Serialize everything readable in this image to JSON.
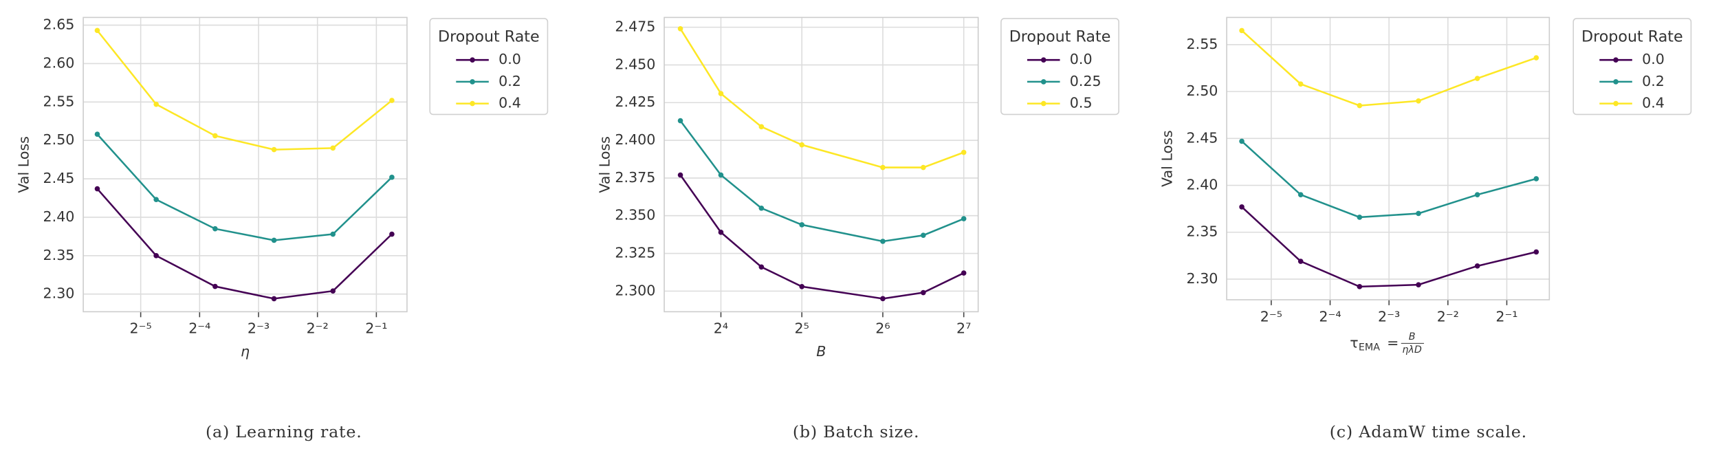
{
  "chart_data": [
    {
      "type": "line",
      "caption": "(a) Learning rate.",
      "xlabel": "η",
      "ylabel": "Val Loss",
      "legend_title": "Dropout Rate",
      "legend_position": "outside upper right",
      "grid": true,
      "xscale": "log2",
      "x": [
        0.01875,
        0.0375,
        0.075,
        0.15,
        0.3,
        0.6
      ],
      "series": [
        {
          "name": "0.0",
          "color": "#440154",
          "values": [
            2.437,
            2.35,
            2.31,
            2.294,
            2.304,
            2.378
          ]
        },
        {
          "name": "0.2",
          "color": "#21918c",
          "values": [
            2.508,
            2.423,
            2.385,
            2.37,
            2.378,
            2.452
          ]
        },
        {
          "name": "0.4",
          "color": "#fde725",
          "values": [
            2.643,
            2.547,
            2.506,
            2.488,
            2.49,
            2.552
          ]
        }
      ],
      "xlim": [
        0.0159,
        0.717
      ],
      "ylim": [
        2.277,
        2.66
      ],
      "xticks": [
        {
          "value": 0.03125,
          "label": "2⁻⁵"
        },
        {
          "value": 0.0625,
          "label": "2⁻⁴"
        },
        {
          "value": 0.125,
          "label": "2⁻³"
        },
        {
          "value": 0.25,
          "label": "2⁻²"
        },
        {
          "value": 0.5,
          "label": "2⁻¹"
        }
      ],
      "yticks": [
        {
          "value": 2.3,
          "label": "2.30"
        },
        2.35,
        {
          "value": 2.4,
          "label": "2.40"
        },
        2.45,
        {
          "value": 2.5,
          "label": "2.50"
        },
        2.55,
        {
          "value": 2.6,
          "label": "2.60"
        },
        2.65
      ]
    },
    {
      "type": "line",
      "caption": "(b) Batch size.",
      "xlabel": "B",
      "ylabel": "Val Loss",
      "legend_title": "Dropout Rate",
      "legend_position": "outside upper right",
      "grid": true,
      "xscale": "log2",
      "x": [
        11.31,
        16,
        22.63,
        32,
        64,
        90.51,
        128
      ],
      "series": [
        {
          "name": "0.0",
          "color": "#440154",
          "values": [
            2.377,
            2.339,
            2.316,
            2.303,
            2.295,
            2.299,
            2.312
          ]
        },
        {
          "name": "0.25",
          "color": "#21918c",
          "values": [
            2.413,
            2.377,
            2.355,
            2.344,
            2.333,
            2.337,
            2.348
          ]
        },
        {
          "name": "0.5",
          "color": "#fde725",
          "values": [
            2.474,
            2.431,
            2.409,
            2.397,
            2.382,
            2.382,
            2.392
          ]
        }
      ],
      "xlim": [
        9.85,
        144.8
      ],
      "ylim": [
        2.2863,
        2.4815
      ],
      "xticks": [
        {
          "value": 16,
          "label": "2⁴"
        },
        {
          "value": 32,
          "label": "2⁵"
        },
        {
          "value": 64,
          "label": "2⁶"
        },
        {
          "value": 128,
          "label": "2⁷"
        }
      ],
      "yticks": [
        {
          "value": 2.3,
          "label": "2.300"
        },
        2.325,
        {
          "value": 2.35,
          "label": "2.350"
        },
        2.375,
        {
          "value": 2.4,
          "label": "2.400"
        },
        2.425,
        {
          "value": 2.45,
          "label": "2.450"
        },
        2.475
      ]
    },
    {
      "type": "line",
      "caption": "(c) AdamW time scale.",
      "xlabel": {
        "symbol": "τ",
        "subscript": "EMA",
        "equals": "=",
        "numerator": "B",
        "denominator": "ηλD"
      },
      "ylabel": "Val Loss",
      "legend_title": "Dropout Rate",
      "legend_position": "outside upper right",
      "grid": true,
      "xscale": "log2",
      "x": [
        0.0221,
        0.0442,
        0.0884,
        0.1768,
        0.3536,
        0.7071
      ],
      "series": [
        {
          "name": "0.0",
          "color": "#440154",
          "values": [
            2.377,
            2.319,
            2.292,
            2.294,
            2.314,
            2.329
          ]
        },
        {
          "name": "0.2",
          "color": "#21918c",
          "values": [
            2.447,
            2.39,
            2.366,
            2.37,
            2.39,
            2.407
          ]
        },
        {
          "name": "0.4",
          "color": "#fde725",
          "values": [
            2.565,
            2.508,
            2.485,
            2.49,
            2.514,
            2.536
          ]
        }
      ],
      "xlim": [
        0.0185,
        0.825
      ],
      "ylim": [
        2.278,
        2.579
      ],
      "xticks": [
        {
          "value": 0.03125,
          "label": "2⁻⁵"
        },
        {
          "value": 0.0625,
          "label": "2⁻⁴"
        },
        {
          "value": 0.125,
          "label": "2⁻³"
        },
        {
          "value": 0.25,
          "label": "2⁻²"
        },
        {
          "value": 0.5,
          "label": "2⁻¹"
        }
      ],
      "yticks": [
        {
          "value": 2.3,
          "label": "2.30"
        },
        2.35,
        {
          "value": 2.4,
          "label": "2.40"
        },
        2.45,
        {
          "value": 2.5,
          "label": "2.50"
        },
        2.55
      ]
    }
  ]
}
